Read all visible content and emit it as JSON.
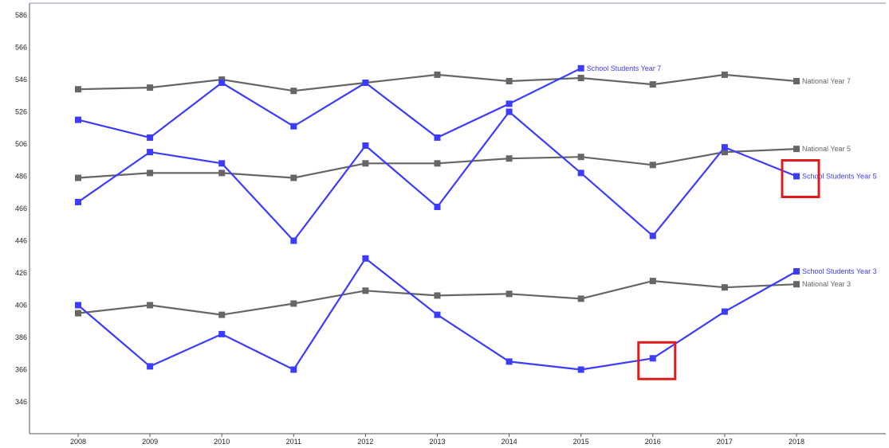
{
  "chart_data": {
    "type": "line",
    "title": "",
    "xlabel": "",
    "ylabel": "",
    "x": [
      2008,
      2009,
      2010,
      2011,
      2012,
      2013,
      2014,
      2015,
      2016,
      2017,
      2018
    ],
    "y_ticks": [
      346,
      366,
      386,
      406,
      426,
      446,
      466,
      486,
      506,
      526,
      546,
      566,
      586
    ],
    "ylim": [
      326,
      588
    ],
    "grid": false,
    "series": [
      {
        "name": "National Year 7",
        "color": "#666666",
        "values": [
          540,
          541,
          546,
          539,
          544,
          549,
          545,
          547,
          543,
          549,
          545
        ]
      },
      {
        "name": "School Students Year 7",
        "color": "#3c3cff",
        "values": [
          521,
          510,
          544,
          517,
          544,
          510,
          531,
          553,
          null,
          null,
          null
        ]
      },
      {
        "name": "National Year 5",
        "color": "#666666",
        "values": [
          485,
          488,
          488,
          485,
          494,
          494,
          497,
          498,
          493,
          501,
          503
        ]
      },
      {
        "name": "School Students Year 5",
        "color": "#3c3cff",
        "values": [
          470,
          501,
          494,
          446,
          505,
          467,
          526,
          488,
          449,
          504,
          486
        ]
      },
      {
        "name": "National Year 3",
        "color": "#666666",
        "values": [
          401,
          406,
          400,
          407,
          415,
          412,
          413,
          410,
          421,
          417,
          419
        ]
      },
      {
        "name": "School Students Year 3",
        "color": "#3c3cff",
        "values": [
          406,
          368,
          388,
          366,
          435,
          400,
          371,
          366,
          373,
          402,
          427
        ]
      }
    ],
    "series_labels": [
      {
        "series": 1,
        "text": "School Students Year 7",
        "at_index": 7
      },
      {
        "series": 0,
        "text": "National Year 7",
        "at_index": 10
      },
      {
        "series": 2,
        "text": "National Year 5",
        "at_index": 10
      },
      {
        "series": 3,
        "text": "School Students Year 5",
        "at_index": 10
      },
      {
        "series": 5,
        "text": "School Students Year 3",
        "at_index": 10
      },
      {
        "series": 4,
        "text": "National Year 3",
        "at_index": 10
      }
    ],
    "highlights": [
      {
        "series": 3,
        "index": 10,
        "color": "#e01b1b"
      },
      {
        "series": 5,
        "index": 8,
        "color": "#e01b1b"
      }
    ]
  }
}
